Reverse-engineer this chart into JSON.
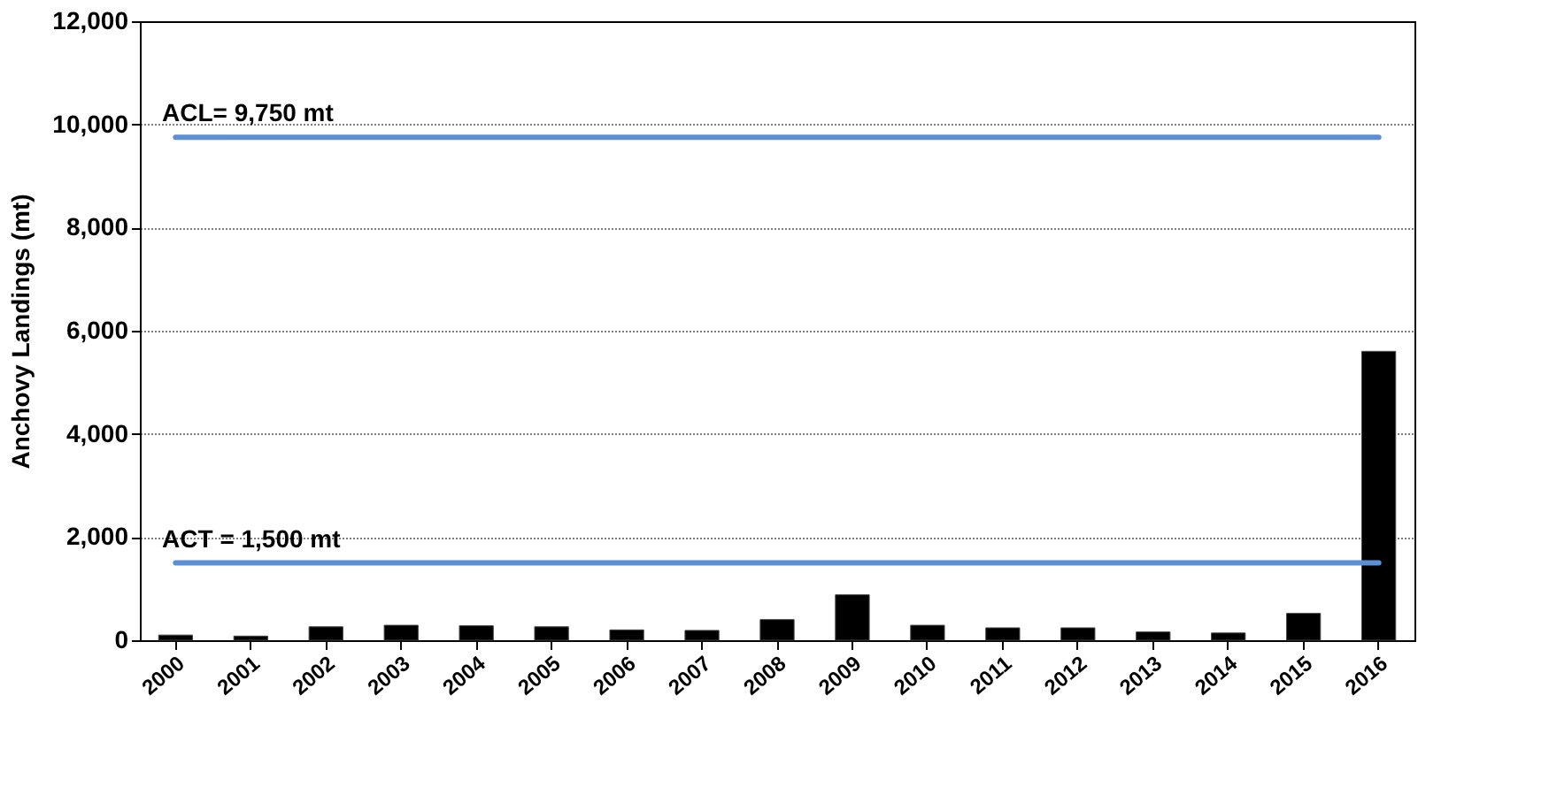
{
  "chart_data": {
    "type": "bar",
    "ylabel": "Anchovy Landings (mt)",
    "categories": [
      "2000",
      "2001",
      "2002",
      "2003",
      "2004",
      "2005",
      "2006",
      "2007",
      "2008",
      "2009",
      "2010",
      "2011",
      "2012",
      "2013",
      "2014",
      "2015",
      "2016"
    ],
    "values": [
      100,
      80,
      260,
      290,
      280,
      260,
      200,
      190,
      400,
      880,
      290,
      240,
      240,
      160,
      140,
      520,
      5600
    ],
    "color": "#000000",
    "ylim": [
      0,
      12000
    ],
    "yticks": [
      {
        "value": 0,
        "label": "0"
      },
      {
        "value": 2000,
        "label": "2,000"
      },
      {
        "value": 4000,
        "label": "4,000"
      },
      {
        "value": 6000,
        "label": "6,000"
      },
      {
        "value": 8000,
        "label": "8,000"
      },
      {
        "value": 10000,
        "label": "10,000"
      },
      {
        "value": 12000,
        "label": "12,000"
      }
    ],
    "grid": "y",
    "ref_lines": [
      {
        "axis": "y",
        "value": 9750,
        "label": "ACL= 9,750 mt",
        "color": "#5b8fd6"
      },
      {
        "axis": "y",
        "value": 1500,
        "label": "ACT  = 1,500 mt",
        "color": "#5b8fd6"
      }
    ]
  }
}
